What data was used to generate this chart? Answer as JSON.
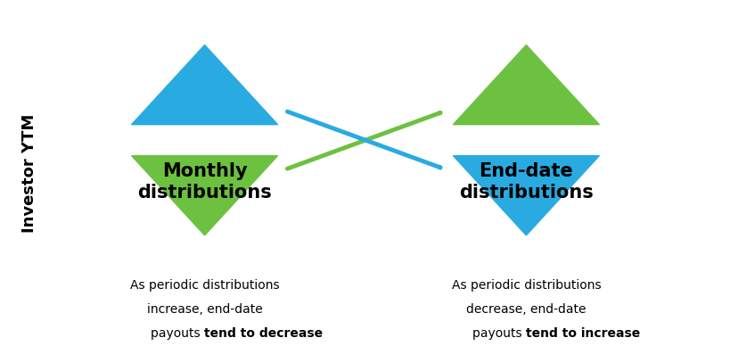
{
  "background_color": "#ffffff",
  "blue_color": "#29ABE2",
  "green_color": "#6DC140",
  "arrow_blue": "#29ABE2",
  "arrow_green": "#6DC140",
  "left_label_line1": "Monthly",
  "left_label_line2": "distributions",
  "right_label_line1": "End-date",
  "right_label_line2": "distributions",
  "bottom_left_line1": "As periodic distributions",
  "bottom_left_line2": "increase, end-date",
  "bottom_left_line3": "payouts ",
  "bottom_left_bold": "tend to decrease",
  "bottom_right_line1": "As periodic distributions",
  "bottom_right_line2": "decrease, end-date",
  "bottom_right_line3": "payouts ",
  "bottom_right_bold": "tend to increase",
  "ytm_label": "Investor YTM",
  "fig_width": 8.2,
  "fig_height": 3.88,
  "dpi": 100
}
